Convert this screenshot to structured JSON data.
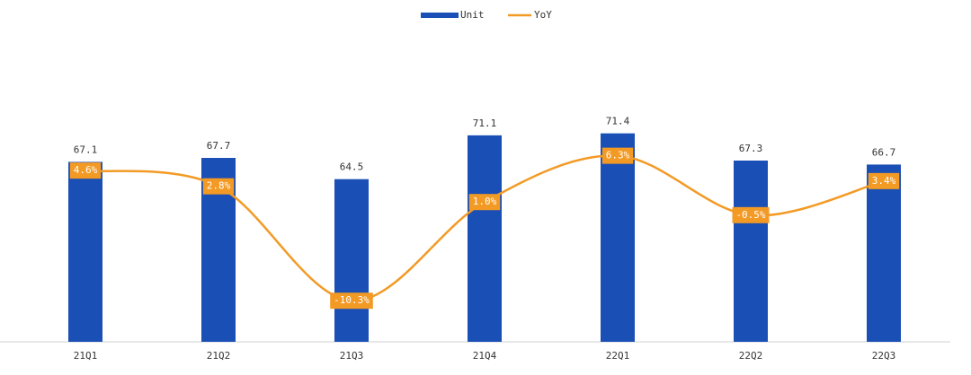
{
  "chart_data": {
    "type": "bar-line",
    "categories": [
      "21Q1",
      "21Q2",
      "21Q3",
      "21Q4",
      "22Q1",
      "22Q2",
      "22Q3"
    ],
    "series": [
      {
        "name": "Unit",
        "type": "bar",
        "color": "#1a4fb5",
        "values": [
          67.1,
          67.7,
          64.5,
          71.1,
          71.4,
          67.3,
          66.7
        ]
      },
      {
        "name": "YoY",
        "type": "line",
        "axis": "y2",
        "color": "#f39a25",
        "values": [
          4.6,
          2.8,
          -10.3,
          1.0,
          6.3,
          -0.5,
          3.4
        ],
        "value_labels": [
          "4.6%",
          "2.8%",
          "-10.3%",
          "1.0%",
          "6.3%",
          "-0.5%",
          "3.4%"
        ]
      }
    ],
    "ylim": [
      40,
      80
    ],
    "y2lim": [
      -15,
      15.4
    ],
    "legend": "top"
  }
}
